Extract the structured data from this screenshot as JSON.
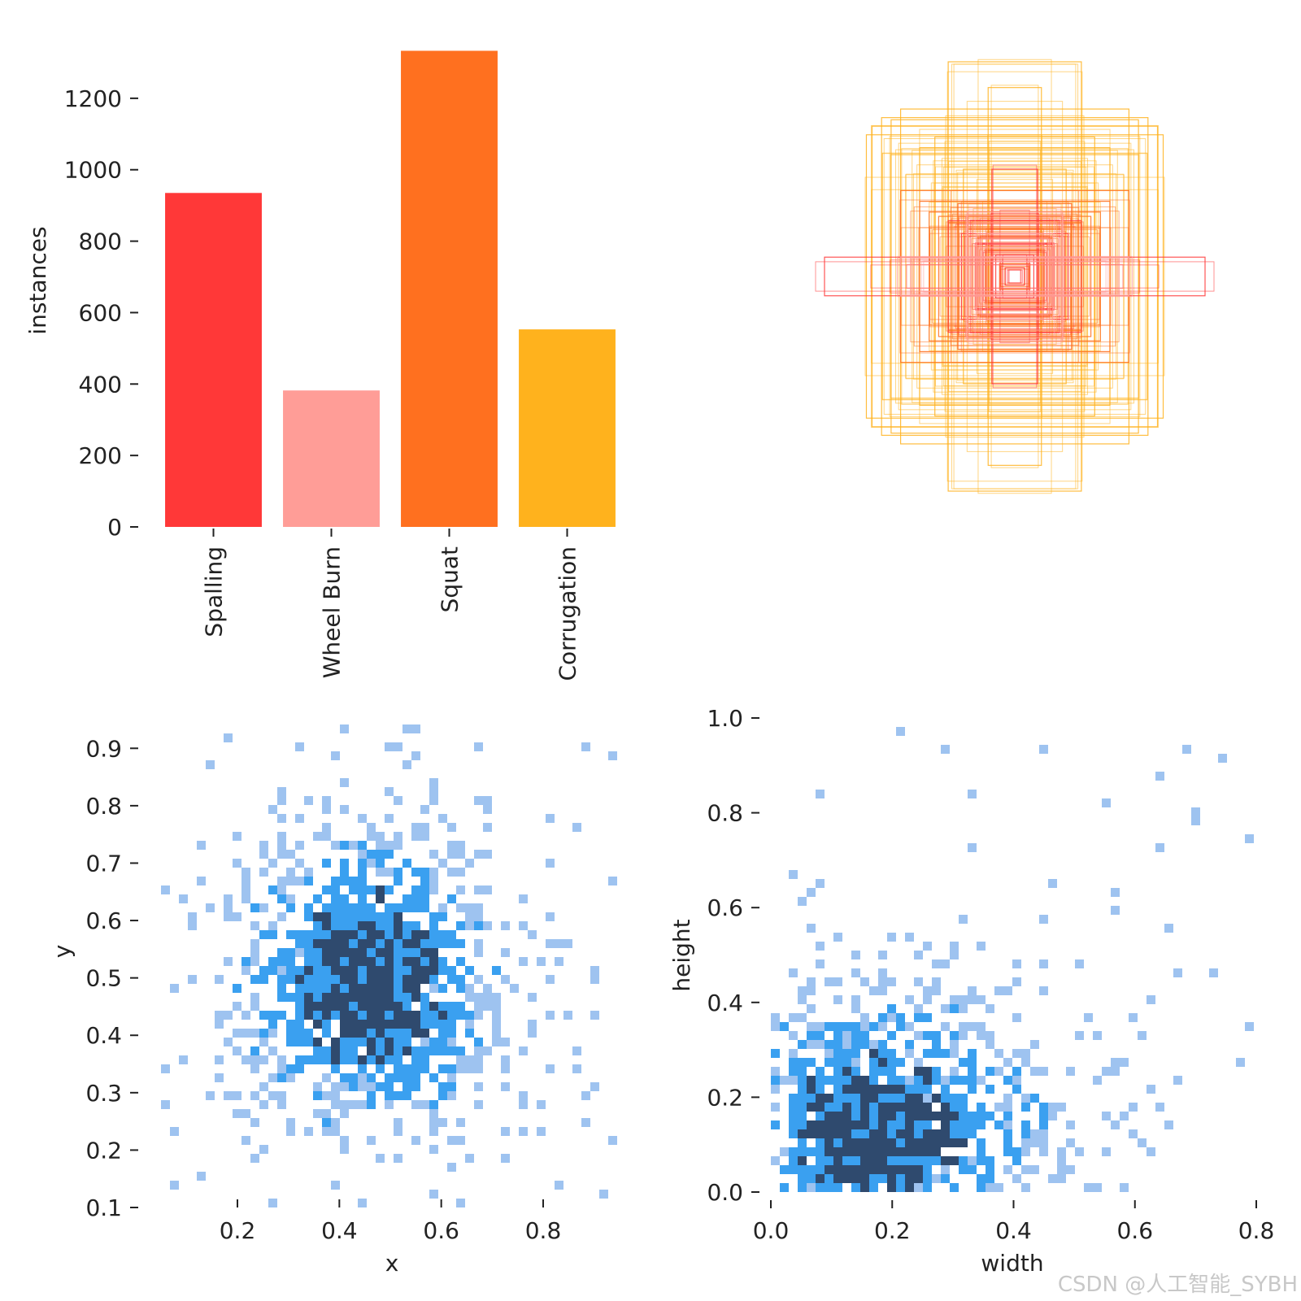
{
  "colors": {
    "spalling": "#ff3838",
    "wheel_burn": "#ff9d97",
    "squat": "#ff701f",
    "corrugation": "#ffb21d",
    "hist_light": "#9ec3f0",
    "hist_mid": "#3aa0f0",
    "hist_dark": "#2f4a6e"
  },
  "watermark": "CSDN @人工智能_SYBH",
  "chart_data": [
    {
      "type": "bar",
      "title": "",
      "ylabel": "instances",
      "xlabel": "",
      "ylim": [
        0,
        1350
      ],
      "yticks": [
        "0",
        "200",
        "400",
        "600",
        "800",
        "1000",
        "1200"
      ],
      "categories": [
        "Spalling",
        "Wheel Burn",
        "Squat",
        "Corrugation"
      ],
      "values": [
        935,
        382,
        1333,
        553
      ]
    },
    {
      "type": "boxes",
      "title": "",
      "description": "overlay of normalized bounding boxes (width, height pairs) centered in a unit square",
      "box_groups": [
        {
          "class": "Corrugation",
          "sizes_wh": [
            [
              0.35,
              1.0
            ],
            [
              0.6,
              0.78
            ],
            [
              0.65,
              0.73
            ],
            [
              0.7,
              0.74
            ],
            [
              0.75,
              0.7
            ],
            [
              0.78,
              0.66
            ],
            [
              0.14,
              0.88
            ],
            [
              0.27,
              0.5
            ],
            [
              0.5,
              0.6
            ],
            [
              0.42,
              0.65
            ]
          ]
        },
        {
          "class": "Squat",
          "sizes_wh": [
            [
              0.5,
              0.35
            ],
            [
              0.45,
              0.3
            ],
            [
              0.4,
              0.28
            ],
            [
              0.3,
              0.34
            ],
            [
              0.25,
              0.22
            ],
            [
              0.2,
              0.18
            ],
            [
              0.6,
              0.4
            ],
            [
              0.35,
              0.25
            ],
            [
              0.15,
              0.12
            ],
            [
              0.08,
              0.06
            ]
          ]
        },
        {
          "class": "Spalling",
          "sizes_wh": [
            [
              1.0,
              0.09
            ],
            [
              0.35,
              0.26
            ],
            [
              0.28,
              0.2
            ],
            [
              0.2,
              0.15
            ],
            [
              0.12,
              0.5
            ],
            [
              0.1,
              0.1
            ],
            [
              0.05,
              0.04
            ]
          ]
        },
        {
          "class": "Wheel Burn",
          "sizes_wh": [
            [
              0.6,
              0.09
            ],
            [
              0.25,
              0.3
            ],
            [
              0.2,
              0.2
            ]
          ]
        }
      ]
    },
    {
      "type": "heatmap",
      "title": "",
      "xlabel": "x",
      "ylabel": "y",
      "xlim": [
        0.05,
        0.95
      ],
      "ylim": [
        0.1,
        0.95
      ],
      "xticks": [
        "0.2",
        "0.4",
        "0.6",
        "0.8"
      ],
      "yticks": [
        "0.1",
        "0.2",
        "0.3",
        "0.4",
        "0.5",
        "0.6",
        "0.7",
        "0.8",
        "0.9"
      ],
      "center": [
        0.46,
        0.5
      ],
      "spread": [
        0.16,
        0.16
      ]
    },
    {
      "type": "heatmap",
      "title": "",
      "xlabel": "width",
      "ylabel": "height",
      "xlim": [
        0.0,
        0.8
      ],
      "ylim": [
        0.0,
        1.0
      ],
      "xticks": [
        "0.0",
        "0.2",
        "0.4",
        "0.6",
        "0.8"
      ],
      "yticks": [
        "0.0",
        "0.2",
        "0.4",
        "0.6",
        "0.8",
        "1.0"
      ],
      "center": [
        0.14,
        0.1
      ],
      "spread": [
        0.11,
        0.12
      ]
    }
  ]
}
